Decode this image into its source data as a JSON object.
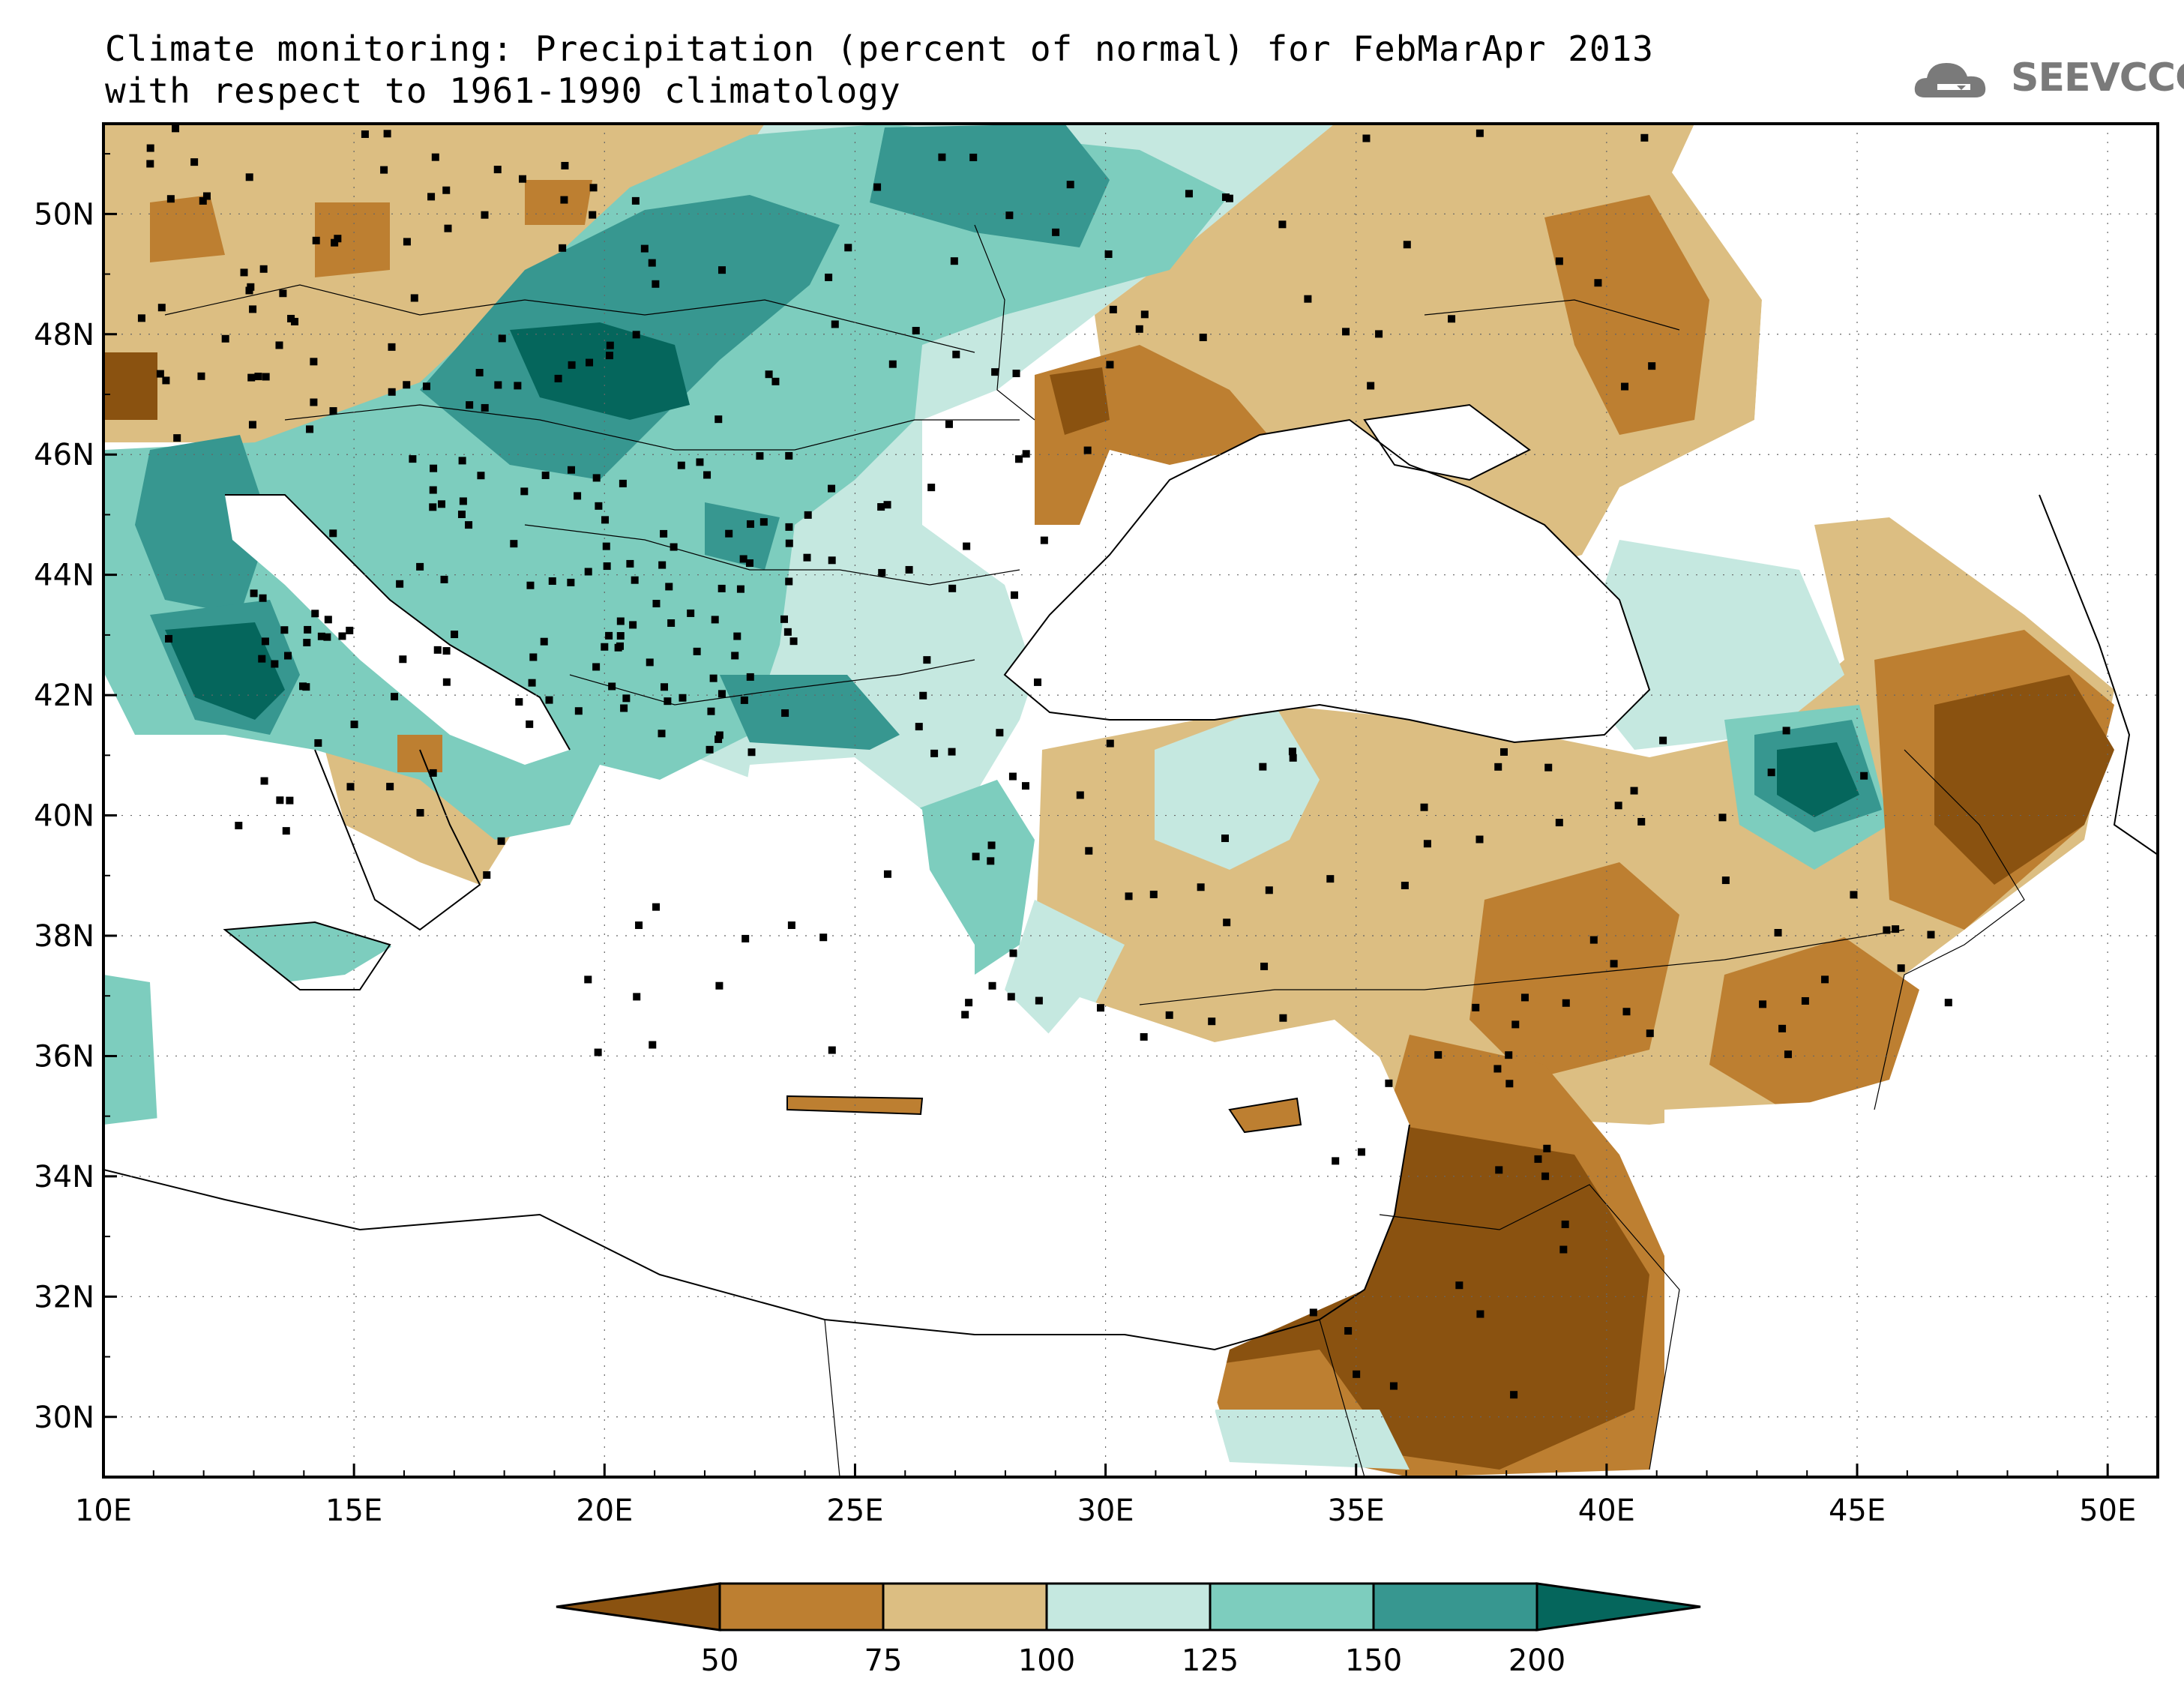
{
  "title": {
    "line1": "Climate monitoring: Precipitation (percent of normal) for FebMarApr 2013",
    "line2": "with respect to 1961-1990 climatology"
  },
  "logo": {
    "text": "SEEVCCC"
  },
  "map": {
    "lon_range": [
      10,
      51
    ],
    "lat_range": [
      29,
      51.5
    ],
    "x_ticks": [
      "10E",
      "15E",
      "20E",
      "25E",
      "30E",
      "35E",
      "40E",
      "45E",
      "50E"
    ],
    "y_ticks": [
      "30N",
      "32N",
      "34N",
      "36N",
      "38N",
      "40N",
      "42N",
      "44N",
      "46N",
      "48N",
      "50N"
    ],
    "grid": "dotted",
    "colors": {
      "lt50": "#8a5210",
      "50-75": "#bd7f31",
      "75-100": "#dcbe82",
      "100-125": "#c5e8e0",
      "125-150": "#7dcdbe",
      "150-200": "#379790",
      "gt200": "#05665c"
    }
  },
  "colorbar": {
    "labels": [
      "50",
      "75",
      "100",
      "125",
      "150",
      "200"
    ],
    "colors": [
      "#8a5210",
      "#bd7f31",
      "#dcbe82",
      "#c5e8e0",
      "#7dcdbe",
      "#379790",
      "#05665c"
    ]
  }
}
